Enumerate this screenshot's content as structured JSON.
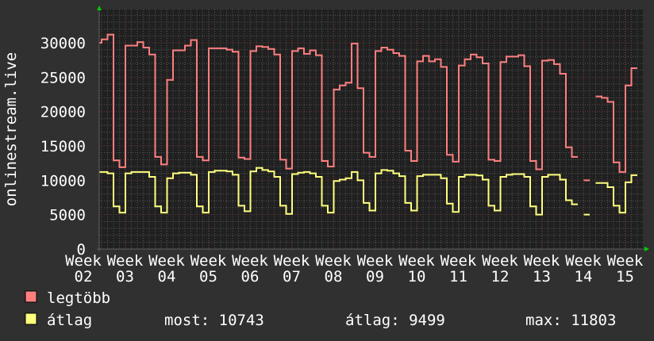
{
  "chart_data": {
    "type": "line",
    "step": true,
    "ylabel": "onlinestream.live",
    "ylim": [
      0,
      35000
    ],
    "yticks": [
      0,
      5000,
      10000,
      15000,
      20000,
      25000,
      30000
    ],
    "xtick_labels": [
      "Week 02",
      "Week 03",
      "Week 04",
      "Week 05",
      "Week 06",
      "Week 07",
      "Week 08",
      "Week 09",
      "Week 10",
      "Week 11",
      "Week 12",
      "Week 13",
      "Week 14",
      "Week 15"
    ],
    "grid": true,
    "legend_placement": "bottom-left",
    "series": [
      {
        "name": "legtöbb",
        "color": "#ff7f7f",
        "values": [
          30000,
          30500,
          31200,
          12900,
          11900,
          29600,
          29600,
          30100,
          29300,
          28300,
          13400,
          12300,
          24600,
          28900,
          28900,
          29600,
          30400,
          13400,
          12900,
          29200,
          29200,
          29200,
          29000,
          28700,
          13300,
          13100,
          28800,
          29500,
          29400,
          29100,
          28300,
          13000,
          11700,
          28800,
          29200,
          28400,
          28900,
          28200,
          12800,
          12000,
          23200,
          23800,
          24200,
          29900,
          23400,
          14000,
          13400,
          28800,
          29300,
          29000,
          28500,
          28100,
          14300,
          12800,
          27300,
          28100,
          27300,
          27600,
          26500,
          13700,
          12700,
          26700,
          27600,
          28300,
          27900,
          27000,
          13000,
          12800,
          27200,
          28000,
          28000,
          28200,
          26600,
          12800,
          11600,
          27400,
          27500,
          26900,
          25500,
          14800,
          13400,
          null,
          10000,
          null,
          22200,
          22000,
          21400,
          12600,
          11200,
          23800,
          26300
        ]
      },
      {
        "name": "átlag",
        "color": "#ffff7f",
        "values": [
          11200,
          11200,
          11000,
          6200,
          5300,
          11000,
          11200,
          11200,
          11200,
          10500,
          6200,
          5300,
          10300,
          11000,
          11100,
          11100,
          10800,
          6200,
          5300,
          11200,
          11400,
          11400,
          11300,
          10800,
          6300,
          5500,
          11300,
          11800,
          11500,
          11300,
          10500,
          6300,
          5100,
          10900,
          11100,
          11200,
          11000,
          10500,
          6300,
          5300,
          9900,
          10100,
          10300,
          11200,
          10000,
          6700,
          5600,
          11000,
          11500,
          11400,
          11000,
          10600,
          6700,
          5600,
          10600,
          10800,
          10800,
          10800,
          10300,
          6600,
          5400,
          10500,
          10800,
          10800,
          10700,
          10100,
          6300,
          5600,
          10500,
          10800,
          10900,
          10900,
          10500,
          6200,
          5000,
          10500,
          10800,
          10800,
          10100,
          7100,
          6500,
          null,
          5000,
          null,
          9600,
          9600,
          9000,
          6300,
          5300,
          9700,
          10743
        ]
      }
    ],
    "legend": {
      "max_label": "legtöbb",
      "avg_label": "átlag",
      "current": "most: 10743",
      "average": "átlag: 9499",
      "maximum": "max: 11803"
    }
  },
  "colors": {
    "background": "#303030",
    "plot_background": "#202020",
    "minor_grid": "#555555",
    "major_grid": "#703535",
    "axis_arrow": "#00cc00"
  }
}
